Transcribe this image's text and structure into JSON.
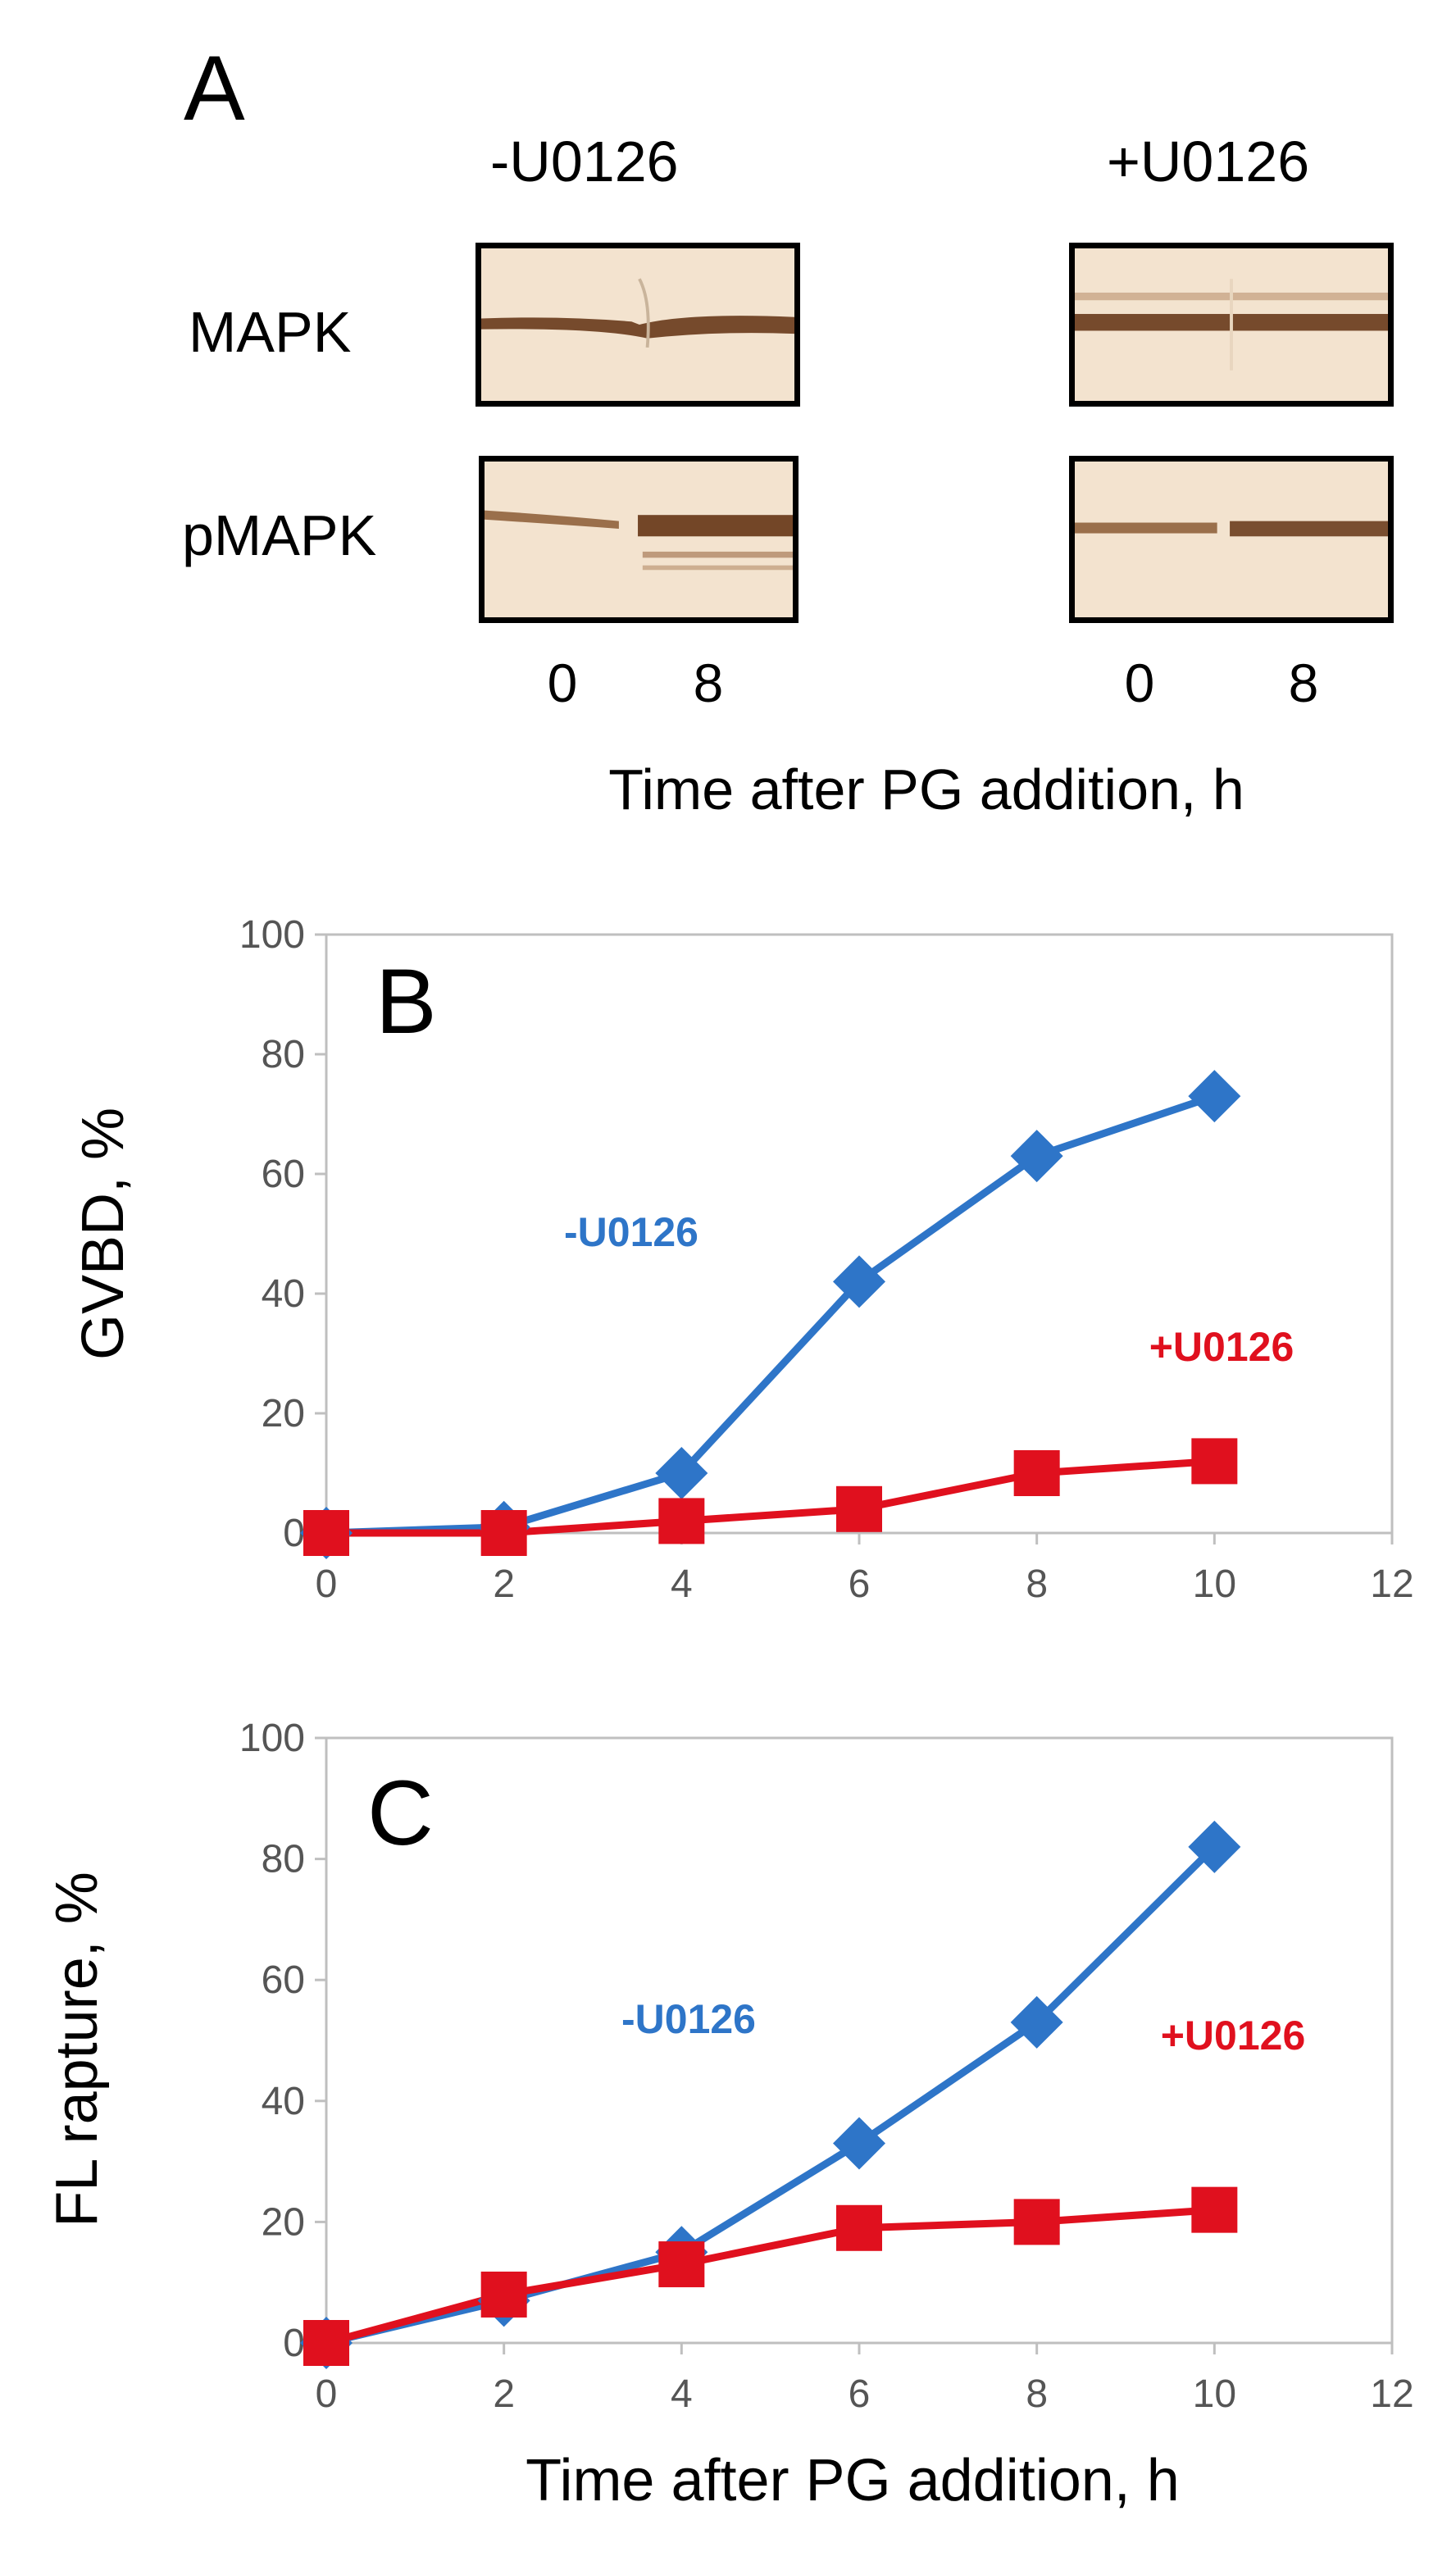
{
  "panel_a": {
    "letter": "A",
    "conditions": [
      "-U0126",
      "+U0126"
    ],
    "rows": [
      "MAPK",
      "pMAPK"
    ],
    "lanes": [
      "0",
      "8"
    ],
    "xlabel": "Time after PG addition, h"
  },
  "chart_data": [
    {
      "type": "line",
      "panel": "B",
      "title": "",
      "xlabel": "",
      "ylabel": "GVBD, %",
      "xlim": [
        0,
        12
      ],
      "ylim": [
        0,
        100
      ],
      "xticks": [
        0,
        2,
        4,
        6,
        8,
        10,
        12
      ],
      "yticks": [
        0,
        20,
        40,
        60,
        80,
        100
      ],
      "grid": false,
      "series": [
        {
          "name": "-U0126",
          "color": "#2e75c8",
          "marker": "diamond",
          "x": [
            0,
            2,
            4,
            6,
            8,
            10
          ],
          "values": [
            0,
            1,
            10,
            42,
            63,
            73
          ]
        },
        {
          "name": "+U0126",
          "color": "#e0101e",
          "marker": "square",
          "x": [
            0,
            2,
            4,
            6,
            8,
            10
          ],
          "values": [
            0,
            0,
            2,
            4,
            10,
            12
          ]
        }
      ]
    },
    {
      "type": "line",
      "panel": "C",
      "title": "",
      "xlabel": "Time after PG addition, h",
      "ylabel": "FL rapture, %",
      "xlim": [
        0,
        12
      ],
      "ylim": [
        0,
        100
      ],
      "xticks": [
        0,
        2,
        4,
        6,
        8,
        10,
        12
      ],
      "yticks": [
        0,
        20,
        40,
        60,
        80,
        100
      ],
      "grid": false,
      "series": [
        {
          "name": "-U0126",
          "color": "#2e75c8",
          "marker": "diamond",
          "x": [
            0,
            2,
            4,
            6,
            8,
            10
          ],
          "values": [
            0,
            7,
            15,
            33,
            53,
            82
          ]
        },
        {
          "name": "+U0126",
          "color": "#e0101e",
          "marker": "square",
          "x": [
            0,
            2,
            4,
            6,
            8,
            10
          ],
          "values": [
            0,
            8,
            13,
            19,
            20,
            22
          ]
        }
      ]
    }
  ]
}
